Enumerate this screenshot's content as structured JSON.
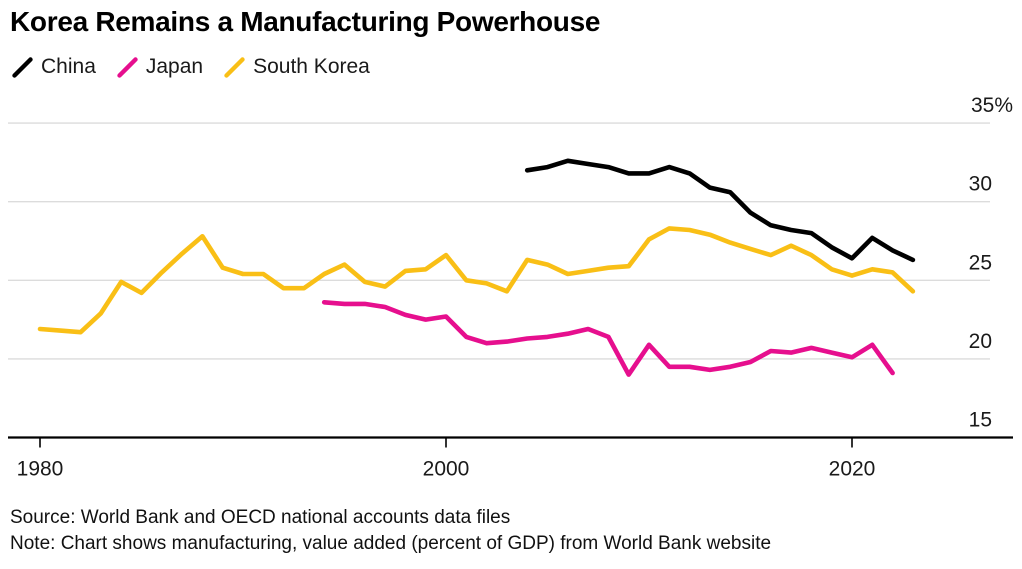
{
  "page": {
    "title": "Korea Remains a Manufacturing Powerhouse",
    "source": "Source: World Bank and OECD national accounts data files",
    "note": "Note: Chart shows manufacturing, value added (percent of GDP) from World Bank website"
  },
  "theme": {
    "background": "#FFFFFF",
    "grid_color": "#DCDCDC",
    "axis_color": "#000000",
    "label_color": "#1A1A1A"
  },
  "chart_data": {
    "type": "line",
    "title": "Korea Remains a Manufacturing Powerhouse",
    "xlabel": "",
    "ylabel": "",
    "unit": "percent of GDP",
    "ylim": [
      15,
      35
    ],
    "y_ticks": [
      35,
      30,
      25,
      20,
      15
    ],
    "y_tick_labels": [
      "35%",
      "30",
      "25",
      "20",
      "15"
    ],
    "x_ticks": [
      1980,
      2000,
      2020
    ],
    "x_tick_labels": [
      "1980",
      "2000",
      "2020"
    ],
    "grid": true,
    "legend_position": "top-left",
    "y_axis_side": "right",
    "series": [
      {
        "name": "China",
        "color": "#000000",
        "start_year": 2004,
        "end_year": 2023,
        "values": [
          32.0,
          32.2,
          32.6,
          32.4,
          32.2,
          31.8,
          31.8,
          32.2,
          31.8,
          30.9,
          30.6,
          29.3,
          28.5,
          28.2,
          28.0,
          27.1,
          26.4,
          27.7,
          26.9,
          26.3
        ]
      },
      {
        "name": "Japan",
        "color": "#E60F8E",
        "start_year": 1994,
        "end_year": 2022,
        "values": [
          23.6,
          23.5,
          23.5,
          23.3,
          22.8,
          22.5,
          22.7,
          21.4,
          21.0,
          21.1,
          21.3,
          21.4,
          21.6,
          21.9,
          21.4,
          19.0,
          20.9,
          19.5,
          19.5,
          19.3,
          19.5,
          19.8,
          20.5,
          20.4,
          20.7,
          20.4,
          20.1,
          20.9,
          19.1
        ]
      },
      {
        "name": "South Korea",
        "color": "#F9BF16",
        "start_year": 1980,
        "end_year": 2023,
        "values": [
          21.9,
          21.8,
          21.7,
          22.9,
          24.9,
          24.2,
          25.5,
          26.7,
          27.8,
          25.8,
          25.4,
          25.4,
          24.5,
          24.5,
          25.4,
          26.0,
          24.9,
          24.6,
          25.6,
          25.7,
          26.6,
          25.0,
          24.8,
          24.3,
          26.3,
          26.0,
          25.4,
          25.6,
          25.8,
          25.9,
          27.6,
          28.3,
          28.2,
          27.9,
          27.4,
          27.0,
          26.6,
          27.2,
          26.6,
          25.7,
          25.3,
          25.7,
          25.5,
          24.3
        ]
      }
    ]
  }
}
